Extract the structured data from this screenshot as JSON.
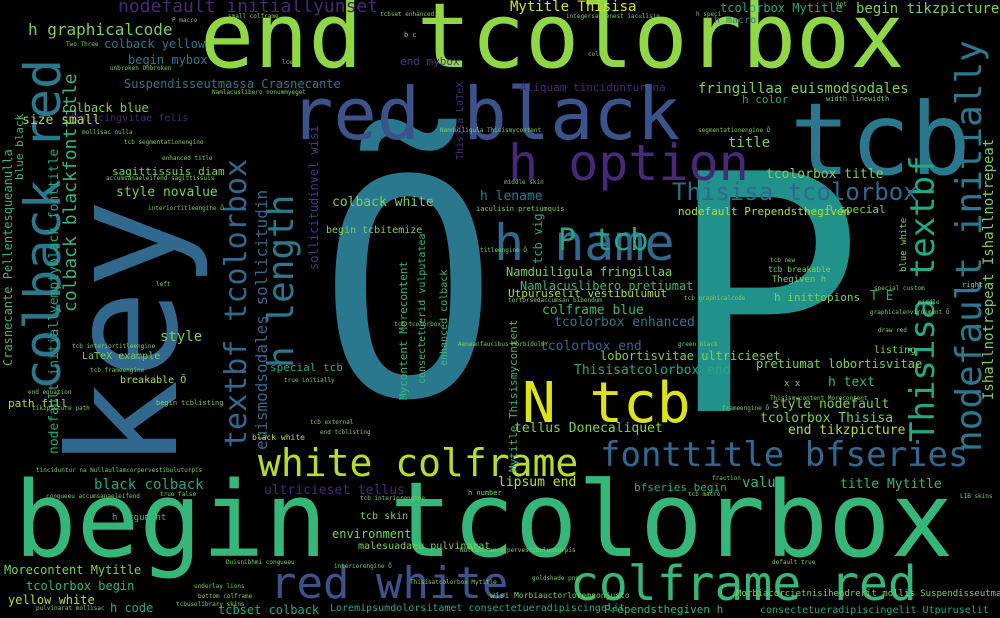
{
  "palette": {
    "background": "#000000",
    "yellow": "#dde318",
    "lime": "#8fd744",
    "green": "#35b779",
    "teal": "#21918c",
    "steel": "#31688e",
    "indigo": "#443983",
    "purple": "#440154"
  },
  "words": [
    {
      "text": "end tcolorbox",
      "color": "#8fd744"
    },
    {
      "text": "begin tcolorbox",
      "color": "#35b779"
    },
    {
      "text": "key",
      "color": "#31688e"
    },
    {
      "text": "Õ",
      "color": "#2a788e"
    },
    {
      "text": "P",
      "color": "#21918c"
    },
    {
      "text": "tcb",
      "color": "#2a788e"
    },
    {
      "text": "red black",
      "color": "#3b528b"
    },
    {
      "text": "h option",
      "color": "#482878"
    },
    {
      "text": "h name",
      "color": "#31688e"
    },
    {
      "text": "colback red",
      "color": "#2a788e"
    },
    {
      "text": "N tcb",
      "color": "#dde318"
    },
    {
      "text": "white colframe",
      "color": "#b5de2b"
    },
    {
      "text": "red white",
      "color": "#3b528b"
    },
    {
      "text": "colframe red",
      "color": "#35b779"
    },
    {
      "text": "fonttitle bfseries",
      "color": "#31688e"
    },
    {
      "text": "nodefault initially",
      "color": "#2a788e"
    },
    {
      "text": "Thisisa textbf",
      "color": "#22a884"
    },
    {
      "text": "h length",
      "color": "#2a788e"
    },
    {
      "text": "textbf tcolorbox",
      "color": "#31688e"
    },
    {
      "text": "Thisisa tcolorbox",
      "color": "#31688e"
    },
    {
      "text": "colback blackfonttitle",
      "color": "#35b779"
    },
    {
      "text": "P tcb",
      "color": "#22a884"
    },
    {
      "text": "euismodsodales sollicitudin",
      "color": "#31688e"
    },
    {
      "text": "Ishallnotrepeat Ishallnotrepeat",
      "color": "#7ad151"
    },
    {
      "text": "Crasnecante Pellentesqueanulla",
      "color": "#35b779"
    },
    {
      "text": "nodefault initiallyemptyblack fonttitle",
      "color": "#22a884"
    },
    {
      "text": "sollicitudinvel wisi",
      "color": "#443983"
    },
    {
      "text": "Mytitle Thisisa",
      "color": "#dde318"
    },
    {
      "text": "nodefault initiallyunset",
      "color": "#482878"
    },
    {
      "text": "h graphicalcode",
      "color": "#7ad151"
    },
    {
      "text": "Suspendisseutmassa Crasnecante",
      "color": "#2a788e"
    },
    {
      "text": "begin tikzpicture",
      "color": "#7ad151"
    },
    {
      "text": "tcolorbox Mytitle",
      "color": "#22a884"
    },
    {
      "text": "h macro",
      "color": "#2a788e"
    },
    {
      "text": "fringillaa euismodsodales",
      "color": "#7ad151"
    },
    {
      "text": "Aliquam tinciduntur na",
      "color": "#482878"
    },
    {
      "text": "colback yellow",
      "color": "#2a788e"
    },
    {
      "text": "colback blue",
      "color": "#7ad151"
    },
    {
      "text": "adipiscingvitae felis",
      "color": "#482878"
    },
    {
      "text": "size small",
      "color": "#b5de2b"
    },
    {
      "text": "blue black",
      "color": "#35b779"
    },
    {
      "text": "begin mybox",
      "color": "#2a788e"
    },
    {
      "text": "end mybox",
      "color": "#443983"
    },
    {
      "text": "sagittissuis diam",
      "color": "#7ad151"
    },
    {
      "text": "style novalue",
      "color": "#7ad151"
    },
    {
      "text": "colback white",
      "color": "#7ad151"
    },
    {
      "text": "h lename",
      "color": "#2a788e"
    },
    {
      "text": "tcb vig",
      "color": "#22a884"
    },
    {
      "text": "title",
      "color": "#7ad151"
    },
    {
      "text": "tcolorbox title",
      "color": "#7ad151"
    },
    {
      "text": "h color",
      "color": "#22a884"
    },
    {
      "text": "Namduiligula fringillaa",
      "color": "#7ad151"
    },
    {
      "text": "Namlacuslibero pretiumat",
      "color": "#35b779"
    },
    {
      "text": "colframe blue",
      "color": "#35b779"
    },
    {
      "text": "tcolorbox enhanced",
      "color": "#2a788e"
    },
    {
      "text": "tcolorbox end",
      "color": "#31688e"
    },
    {
      "text": "lobortisvitae ultricieset",
      "color": "#7ad151"
    },
    {
      "text": "Thisisatcolorbox end",
      "color": "#22a884"
    },
    {
      "text": "pretiumat lobortisvitae",
      "color": "#7ad151"
    },
    {
      "text": "Utpuruselit vestibulumut",
      "color": "#b5de2b"
    },
    {
      "text": "h text",
      "color": "#35b779"
    },
    {
      "text": "style nodefault",
      "color": "#7ad151"
    },
    {
      "text": "tcolorbox Thisisa",
      "color": "#7ad151"
    },
    {
      "text": "end tikzpicture",
      "color": "#b5de2b"
    },
    {
      "text": "tellus Donecaliquet",
      "color": "#7ad151"
    },
    {
      "text": "Mycontent Morecontent",
      "color": "#35b779"
    },
    {
      "text": "Mytitle Thisismycontent",
      "color": "#35b779"
    },
    {
      "text": "style",
      "color": "#7ad151"
    },
    {
      "text": "special tcb",
      "color": "#22a884"
    },
    {
      "text": "ultricieset tellus",
      "color": "#482878"
    },
    {
      "text": "lipsum end",
      "color": "#b5de2b"
    },
    {
      "text": "value",
      "color": "#35b779"
    },
    {
      "text": "title Mytitle",
      "color": "#35b779"
    },
    {
      "text": "environment",
      "color": "#7ad151"
    },
    {
      "text": "bfseries begin",
      "color": "#22a884"
    },
    {
      "text": "black colback",
      "color": "#22a884"
    },
    {
      "text": "tcolorbox begin",
      "color": "#35b779"
    },
    {
      "text": "Morecontent Mytitle",
      "color": "#7ad151"
    },
    {
      "text": "yellow white",
      "color": "#b5de2b"
    },
    {
      "text": "h code",
      "color": "#22a884"
    },
    {
      "text": "tcbset colback",
      "color": "#22a884"
    },
    {
      "text": "path fill",
      "color": "#b5de2b"
    },
    {
      "text": "Prependsthegiven h",
      "color": "#35b779"
    },
    {
      "text": "Loremipsumdolorsitamet consectetueradipiscingelit",
      "color": "#22a884"
    },
    {
      "text": "consectetueradipiscingelit Utpuruselit",
      "color": "#22a884"
    },
    {
      "text": "h inittopions",
      "color": "#7ad151"
    },
    {
      "text": "T E",
      "color": "#22a884"
    },
    {
      "text": "listing",
      "color": "#7ad151"
    },
    {
      "text": "breakable Õ",
      "color": "#b5de2b"
    },
    {
      "text": "LaTeX example",
      "color": "#7ad151"
    },
    {
      "text": "begin tcbitemize",
      "color": "#7ad151"
    },
    {
      "text": "consectetuerid vulputatea",
      "color": "#35b779"
    },
    {
      "text": "enhanced colback",
      "color": "#35b779"
    },
    {
      "text": "Thisisa LaTeX",
      "color": "#482878"
    },
    {
      "text": "nodefault Prependsthegiven",
      "color": "#b5de2b"
    },
    {
      "text": "P special",
      "color": "#7ad151"
    },
    {
      "text": "tcb skin",
      "color": "#7ad151"
    },
    {
      "text": "h argument",
      "color": "#35b779"
    },
    {
      "text": "malesuadaeu pulvinarat",
      "color": "#7ad151"
    },
    {
      "text": "wisi Morbiauctorloremnonjusto",
      "color": "#7ad151"
    },
    {
      "text": "Morbiacorcietnisihendrerit mollis Suspendisseutmassa",
      "color": "#7ad151"
    },
    {
      "text": "blue white",
      "color": "#7ad151"
    },
    {
      "text": "Thegiven h",
      "color": "#7ad151"
    },
    {
      "text": "tcb breakable",
      "color": "#7ad151"
    },
    {
      "text": "x x",
      "color": "#7ad151"
    },
    {
      "text": "enhanced title",
      "color": "#7ad151"
    },
    {
      "text": "left",
      "color": "#7ad151"
    },
    {
      "text": "black white",
      "color": "#b5de2b"
    },
    {
      "text": "true initially",
      "color": "#7ad151"
    },
    {
      "text": "end equation",
      "color": "#7ad151"
    },
    {
      "text": "h number",
      "color": "#7ad151"
    },
    {
      "text": "width linewidth",
      "color": "#7ad151"
    },
    {
      "text": "green black",
      "color": "#7ad151"
    },
    {
      "text": "draw red",
      "color": "#7ad151"
    },
    {
      "text": "middle",
      "color": "#7ad151"
    },
    {
      "text": "segmentationengine Õ",
      "color": "#7ad151"
    },
    {
      "text": "Namlacuslibero nonummyeget",
      "color": "#7ad151"
    },
    {
      "text": "iaculisin pretiumquis",
      "color": "#7ad151"
    },
    {
      "text": "P macro",
      "color": "#7ad151"
    },
    {
      "text": "tcbset enhanced",
      "color": "#7ad151"
    },
    {
      "text": "small colframe",
      "color": "#7ad151"
    },
    {
      "text": "integersapienest iaculisin",
      "color": "#7ad151"
    },
    {
      "text": "h speci",
      "color": "#7ad151"
    },
    {
      "text": "Opt",
      "color": "#7ad151"
    },
    {
      "text": "b c",
      "color": "#7ad151"
    },
    {
      "text": "color",
      "color": "#7ad151"
    },
    {
      "text": "One Two",
      "color": "#7ad151"
    },
    {
      "text": "lce",
      "color": "#7ad151"
    },
    {
      "text": "Two Three",
      "color": "#7ad151"
    },
    {
      "text": "unbroken Unbroken",
      "color": "#7ad151"
    },
    {
      "text": "mollisac nulla",
      "color": "#7ad151"
    },
    {
      "text": "interiortitleengine Õ",
      "color": "#7ad151"
    },
    {
      "text": "accumsanaeleifend sagittissuis",
      "color": "#7ad151"
    },
    {
      "text": "tcb interiortitleengine",
      "color": "#7ad151"
    },
    {
      "text": "tcb frameengine",
      "color": "#7ad151"
    },
    {
      "text": "tikzpicture path",
      "color": "#7ad151"
    },
    {
      "text": "begin tcblisting",
      "color": "#7ad151"
    },
    {
      "text": "tcb external",
      "color": "#7ad151"
    },
    {
      "text": "end tcblisting",
      "color": "#7ad151"
    },
    {
      "text": "tinciduntur na Nullaullamcorpervestibuluturpis",
      "color": "#7ad151"
    },
    {
      "text": "congueeu accumsanaeleifend",
      "color": "#7ad151"
    },
    {
      "text": "true false",
      "color": "#7ad151"
    },
    {
      "text": "tcb interiorengine",
      "color": "#7ad151"
    },
    {
      "text": "Duisnibhmi congueeu",
      "color": "#7ad151"
    },
    {
      "text": "interiorengine Õ",
      "color": "#7ad151"
    },
    {
      "text": "underlay lions",
      "color": "#7ad151"
    },
    {
      "text": "bottom colframe",
      "color": "#7ad151"
    },
    {
      "text": "tcbuselibrary skins",
      "color": "#7ad151"
    },
    {
      "text": "pulvinarat mollisac",
      "color": "#7ad151"
    },
    {
      "text": "goldshade png",
      "color": "#7ad151"
    },
    {
      "text": "Thisisatcolorbox Mytitle",
      "color": "#7ad151"
    },
    {
      "text": "Nullaullamcorpervestibulumturpis",
      "color": "#7ad151"
    },
    {
      "text": "tcb graphicalcode",
      "color": "#7ad151"
    },
    {
      "text": "tortorsedaccumsan bibendum",
      "color": "#7ad151"
    },
    {
      "text": "Aeneanfaucibus Morbidolor",
      "color": "#7ad151"
    },
    {
      "text": "titleengine Õ",
      "color": "#7ad151"
    },
    {
      "text": "frameengine Õ",
      "color": "#7ad151"
    },
    {
      "text": "middle skin",
      "color": "#7ad151"
    },
    {
      "text": "graphicalenvironment Õ",
      "color": "#7ad151"
    },
    {
      "text": "tcb new",
      "color": "#7ad151"
    },
    {
      "text": "special custom",
      "color": "#7ad151"
    },
    {
      "text": "right",
      "color": "#7ad151"
    },
    {
      "text": "default true",
      "color": "#7ad151"
    },
    {
      "text": "LIB skins",
      "color": "#7ad151"
    },
    {
      "text": "fraction",
      "color": "#7ad151"
    },
    {
      "text": "tcb segmentationengine",
      "color": "#7ad151"
    },
    {
      "text": "tcb tcolorbox",
      "color": "#7ad151"
    },
    {
      "text": "Thisismycontent Morecontent",
      "color": "#7ad151"
    },
    {
      "text": "tcb macro",
      "color": "#7ad151"
    },
    {
      "text": "Namduiligula Thisismycontent",
      "color": "#7ad151"
    }
  ]
}
